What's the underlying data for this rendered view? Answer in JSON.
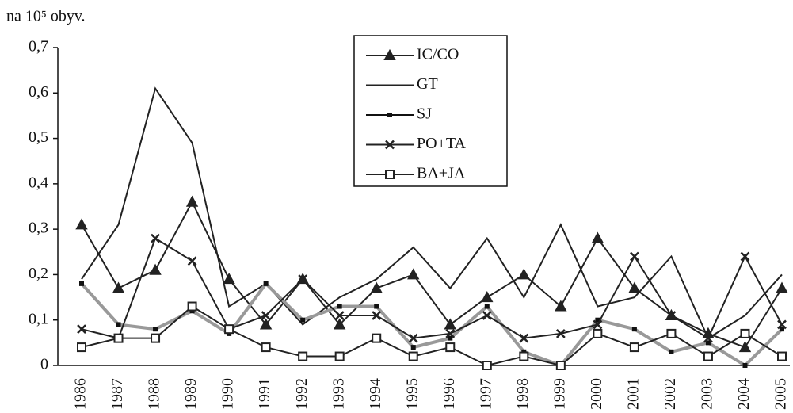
{
  "chart_data": {
    "type": "line",
    "y_label": "na 10⁵ obyv.",
    "categories": [
      "1986",
      "1987",
      "1988",
      "1989",
      "1990",
      "1991",
      "1992",
      "1993",
      "1994",
      "1995",
      "1996",
      "1997",
      "1998",
      "1999",
      "2000",
      "2001",
      "2002",
      "2003",
      "2004",
      "2005"
    ],
    "series": [
      {
        "name": "IC/CO",
        "color": "#222222",
        "marker": "triangle",
        "values": [
          0.31,
          0.17,
          0.21,
          0.36,
          0.19,
          0.09,
          0.19,
          0.09,
          0.17,
          0.2,
          0.09,
          0.15,
          0.2,
          0.13,
          0.28,
          0.17,
          0.11,
          0.07,
          0.04,
          0.17
        ]
      },
      {
        "name": "GT",
        "color": "#222222",
        "marker": "none",
        "values": [
          0.19,
          0.31,
          0.61,
          0.49,
          0.13,
          0.18,
          0.09,
          0.15,
          0.19,
          0.26,
          0.17,
          0.28,
          0.15,
          0.31,
          0.13,
          0.15,
          0.24,
          0.06,
          0.11,
          0.2
        ]
      },
      {
        "name": "SJ",
        "color": "#999999",
        "marker": "dash",
        "values": [
          0.18,
          0.09,
          0.08,
          0.12,
          0.07,
          0.18,
          0.1,
          0.13,
          0.13,
          0.04,
          0.06,
          0.13,
          0.03,
          0,
          0.1,
          0.08,
          0.03,
          0.05,
          0,
          0.08
        ]
      },
      {
        "name": "PO+TA",
        "color": "#222222",
        "marker": "x",
        "values": [
          0.08,
          0.06,
          0.28,
          0.23,
          0.08,
          0.11,
          0.19,
          0.11,
          0.11,
          0.06,
          0.07,
          0.11,
          0.06,
          0.07,
          0.09,
          0.24,
          0.11,
          0.06,
          0.24,
          0.09
        ]
      },
      {
        "name": "BA+JA",
        "color": "#222222",
        "marker": "square",
        "values": [
          0.04,
          0.06,
          0.06,
          0.13,
          0.08,
          0.04,
          0.02,
          0.02,
          0.06,
          0.02,
          0.04,
          0,
          0.02,
          0,
          0.07,
          0.04,
          0.07,
          0.02,
          0.07,
          0.02
        ]
      }
    ],
    "ylim": [
      0,
      0.7
    ],
    "yticks": [
      0,
      {
        "value": 0.1,
        "label": "0,1"
      },
      {
        "value": 0.2,
        "label": "0,2"
      },
      {
        "value": 0.3,
        "label": "0,3"
      },
      {
        "value": 0.4,
        "label": "0,4"
      },
      {
        "value": 0.5,
        "label": "0,5"
      },
      {
        "value": 0.6,
        "label": "0,6"
      },
      {
        "value": 0.7,
        "label": "0,7"
      }
    ],
    "grid": false
  }
}
